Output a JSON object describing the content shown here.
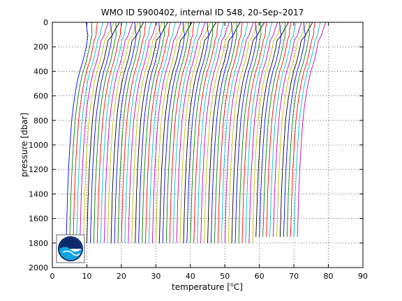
{
  "chart_data": {
    "type": "line",
    "title": "WMO ID 5900402, internal ID 548, 20–Sep–2017",
    "xlabel": "temperature [°C]",
    "xlabel_parts": {
      "before": "temperature [",
      "superscript": "o",
      "after": "C]"
    },
    "ylabel": "pressure [dbar]",
    "xlim": [
      0,
      90
    ],
    "ylim": [
      0,
      2000
    ],
    "y_reversed": true,
    "grid": true,
    "grid_style": "dotted",
    "x_ticks": [
      0,
      10,
      20,
      30,
      40,
      50,
      60,
      70,
      80,
      90
    ],
    "y_ticks": [
      0,
      200,
      400,
      600,
      800,
      1000,
      1200,
      1400,
      1600,
      1800,
      2000
    ],
    "series_colors": [
      "#0000ff",
      "#008000",
      "#ff0000",
      "#00bfbf",
      "#bf00bf",
      "#bfbf00",
      "#000000"
    ],
    "profile_count": 68,
    "profile_offset_step": 1,
    "first_profile_deep_temperature": 4,
    "base_profile": {
      "pressure": [
        0,
        5,
        30,
        60,
        100,
        120,
        150,
        200,
        250,
        300,
        350,
        400,
        500,
        600,
        700,
        800,
        1000,
        1200,
        1400,
        1600,
        1800
      ],
      "temperature": [
        11.5,
        11.5,
        11.3,
        11.0,
        10.8,
        10.5,
        10.0,
        9.7,
        9.3,
        8.9,
        8.4,
        7.8,
        7.0,
        6.4,
        5.9,
        5.5,
        5.0,
        4.6,
        4.3,
        4.1,
        3.9
      ]
    },
    "max_pressure_default": 1800,
    "late_profiles_max_pressure": 1750,
    "late_profiles_from_index": 55
  },
  "logo": {
    "name": "NOAA",
    "text": "NOAA"
  }
}
